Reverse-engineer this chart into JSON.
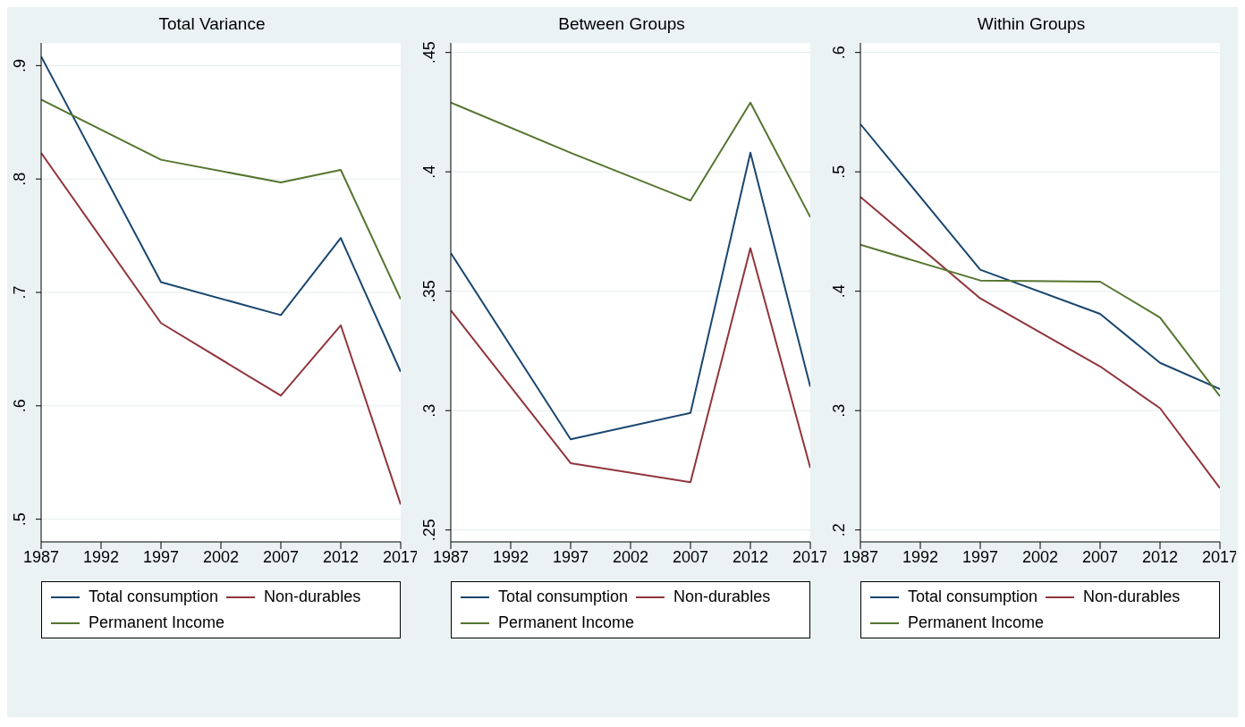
{
  "chart_data": [
    {
      "type": "line",
      "title": "Total Variance",
      "x": [
        1987,
        1997,
        2007,
        2012,
        2017
      ],
      "xlim": [
        1987,
        2017
      ],
      "xticks": [
        1987,
        1992,
        1997,
        2002,
        2007,
        2012,
        2017
      ],
      "ylim": [
        0.48,
        0.92
      ],
      "yticks": [
        {
          "value": 0.5,
          "label": ".5"
        },
        {
          "value": 0.6,
          "label": ".6"
        },
        {
          "value": 0.7,
          "label": ".7"
        },
        {
          "value": 0.8,
          "label": ".8"
        },
        {
          "value": 0.9,
          "label": ".9"
        }
      ],
      "grid": "y",
      "legend": "bottom",
      "marker": "none",
      "line_style": "solid",
      "series": [
        {
          "name": "Total consumption",
          "color": "#1a476f",
          "values": [
            0.908,
            0.709,
            0.68,
            0.748,
            0.63
          ]
        },
        {
          "name": "Non-durables",
          "color": "#90353b",
          "values": [
            0.823,
            0.673,
            0.609,
            0.671,
            0.513
          ]
        },
        {
          "name": "Permanent Income",
          "color": "#55752f",
          "values": [
            0.87,
            0.817,
            0.797,
            0.808,
            0.694
          ]
        }
      ]
    },
    {
      "type": "line",
      "title": "Between Groups",
      "x": [
        1987,
        1997,
        2007,
        2012,
        2017
      ],
      "xlim": [
        1987,
        2017
      ],
      "xticks": [
        1987,
        1992,
        1997,
        2002,
        2007,
        2012,
        2017
      ],
      "ylim": [
        0.245,
        0.454
      ],
      "yticks": [
        {
          "value": 0.25,
          "label": ".25"
        },
        {
          "value": 0.3,
          "label": ".3"
        },
        {
          "value": 0.35,
          "label": ".35"
        },
        {
          "value": 0.4,
          "label": ".4"
        },
        {
          "value": 0.45,
          "label": ".45"
        }
      ],
      "grid": "y",
      "legend": "bottom",
      "marker": "none",
      "line_style": "solid",
      "series": [
        {
          "name": "Total consumption",
          "color": "#1a476f",
          "values": [
            0.366,
            0.288,
            0.299,
            0.408,
            0.31
          ]
        },
        {
          "name": "Non-durables",
          "color": "#90353b",
          "values": [
            0.342,
            0.278,
            0.27,
            0.368,
            0.276
          ]
        },
        {
          "name": "Permanent Income",
          "color": "#55752f",
          "values": [
            0.429,
            0.408,
            0.388,
            0.429,
            0.381
          ]
        }
      ]
    },
    {
      "type": "line",
      "title": "Within Groups",
      "x": [
        1987,
        1997,
        2007,
        2012,
        2017
      ],
      "xlim": [
        1987,
        2017
      ],
      "xticks": [
        1987,
        1992,
        1997,
        2002,
        2007,
        2012,
        2017
      ],
      "ylim": [
        0.19,
        0.608
      ],
      "yticks": [
        {
          "value": 0.2,
          "label": ".2"
        },
        {
          "value": 0.3,
          "label": ".3"
        },
        {
          "value": 0.4,
          "label": ".4"
        },
        {
          "value": 0.5,
          "label": ".5"
        },
        {
          "value": 0.6,
          "label": ".6"
        }
      ],
      "grid": "y",
      "legend": "bottom",
      "marker": "none",
      "line_style": "solid",
      "series": [
        {
          "name": "Total consumption",
          "color": "#1a476f",
          "values": [
            0.54,
            0.418,
            0.381,
            0.34,
            0.318
          ]
        },
        {
          "name": "Non-durables",
          "color": "#90353b",
          "values": [
            0.479,
            0.394,
            0.337,
            0.302,
            0.235
          ]
        },
        {
          "name": "Permanent Income",
          "color": "#55752f",
          "values": [
            0.439,
            0.409,
            0.408,
            0.378,
            0.312
          ]
        }
      ]
    }
  ]
}
